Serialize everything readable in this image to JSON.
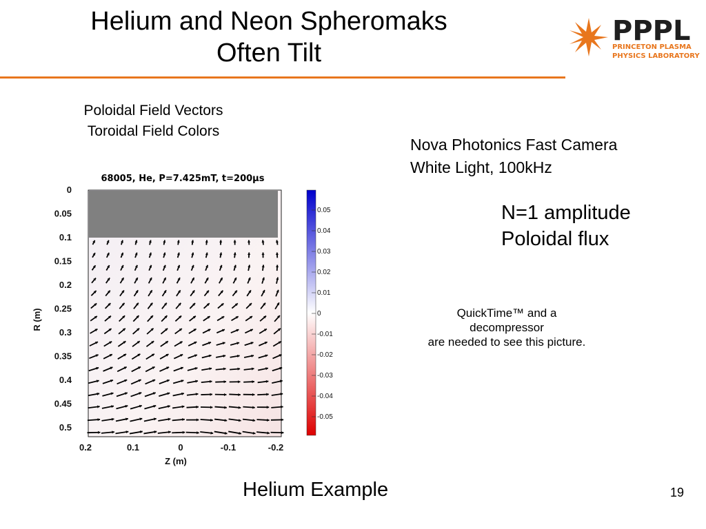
{
  "slide": {
    "title_line1": "Helium and Neon Spheromaks",
    "title_line2": "Often Tilt",
    "subtitle_line1": "Poloidal Field Vectors",
    "subtitle_line2": "Toroidal Field Colors",
    "camera_line1": "Nova Photonics Fast Camera",
    "camera_line2": "White Light, 100kHz",
    "mode_line1": "N=1 amplitude",
    "mode_line2": "Poloidal flux",
    "quicktime_line1": "QuickTime™ and a",
    "quicktime_line2": "decompressor",
    "quicktime_line3": "are needed to see this picture.",
    "footer": "Helium Example",
    "page_number": "19",
    "accent_color": "#e8761d"
  },
  "logo": {
    "text": "PPPL",
    "line1": "PRINCETON PLASMA",
    "line2": "PHYSICS LABORATORY",
    "text_color": "#1f1f1f",
    "subtext_color": "#e8761d"
  },
  "plot": {
    "header": "68005, He, P=7.425mT, t=200µs",
    "xlabel": "Z (m)",
    "ylabel": "R (m)",
    "x_ticks": [
      "0.2",
      "0.1",
      "0",
      "-0.1",
      "-0.2"
    ],
    "y_ticks": [
      "0",
      "0.05",
      "0.1",
      "0.15",
      "0.2",
      "0.25",
      "0.3",
      "0.35",
      "0.4",
      "0.45",
      "0.5"
    ],
    "colorbar_ticks": [
      "0.05",
      "0.04",
      "0.03",
      "0.02",
      "0.01",
      "0",
      "-0.01",
      "-0.02",
      "-0.03",
      "-0.04",
      "-0.05"
    ]
  }
}
